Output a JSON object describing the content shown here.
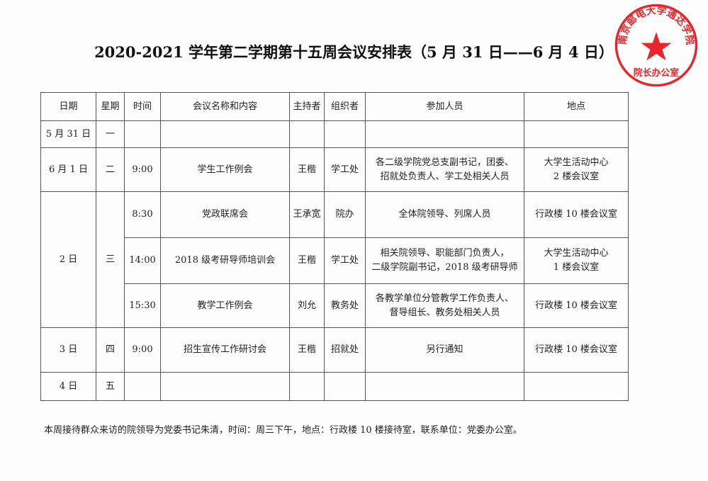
{
  "title": "2020-2021 学年第二学期第十五周会议安排表（5 月 31 日——6 月 4 日）",
  "table": {
    "headers": [
      "日期",
      "星期",
      "时间",
      "会议名称和内容",
      "主持者",
      "组织者",
      "参加人员",
      "地点"
    ],
    "days": [
      {
        "date": "5 月 31 日",
        "weekday": "一"
      },
      {
        "date": "6 月 1 日",
        "weekday": "二"
      },
      {
        "date": "2 日",
        "weekday": "三"
      },
      {
        "date": "3 日",
        "weekday": "四"
      },
      {
        "date": "4 日",
        "weekday": "五"
      }
    ],
    "meetings": [
      {
        "time": "9:00",
        "name": "学生工作例会",
        "host": "王楷",
        "organizer": "学工处",
        "attendees": [
          "各二级学院党总支副书记，团委、",
          "招就处负责人、学工处相关人员"
        ],
        "location": [
          "大学生活动中心",
          "2 楼会议室"
        ]
      },
      {
        "time": "8:30",
        "name": "党政联席会",
        "host": "王承宽",
        "organizer": "院办",
        "attendees": [
          "全体院领导、列席人员"
        ],
        "location": [
          "行政楼 10 楼会议室"
        ]
      },
      {
        "time": "14:00",
        "name": "2018 级考研导师培训会",
        "host": "王楷",
        "organizer": "学工处",
        "attendees": [
          "相关院领导、职能部门负责人，",
          "二级学院副书记，2018 级考研导师"
        ],
        "location": [
          "大学生活动中心",
          "1 楼会议室"
        ]
      },
      {
        "time": "15:30",
        "name": "教学工作例会",
        "host": "刘允",
        "organizer": "教务处",
        "attendees": [
          "各教学单位分管教学工作负责人、",
          "督导组长、教务处相关人员"
        ],
        "location": [
          "行政楼 10 楼会议室"
        ]
      },
      {
        "time": "9:00",
        "name": "招生宣传工作研讨会",
        "host": "王楷",
        "organizer": "招就处",
        "attendees": [
          "另行通知"
        ],
        "location": [
          "行政楼 10 楼会议室"
        ]
      }
    ]
  },
  "footer": "本周接待群众来访的院领导为党委书记朱清，时间：周三下午，地点：行政楼 10 楼接待室，联系单位：党委办公室。",
  "stamp": {
    "top_text": "南京邮电大学通达学院",
    "bottom_text": "院长办公室",
    "color": "#e8262a"
  }
}
